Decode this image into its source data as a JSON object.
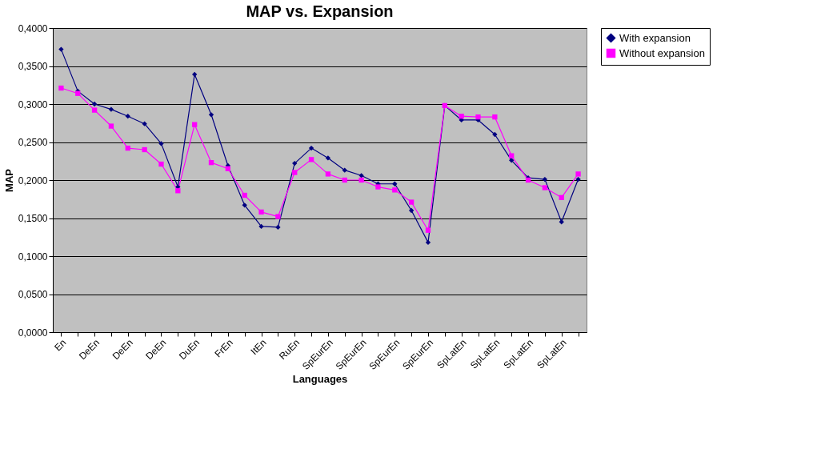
{
  "chart_data": {
    "type": "line",
    "title": "MAP vs. Expansion",
    "xlabel": "Languages",
    "ylabel": "MAP",
    "categories": [
      "En",
      null,
      "DeEn",
      null,
      "DeEn",
      null,
      "DeEn",
      null,
      "DuEn",
      null,
      "FrEn",
      null,
      "ItEn",
      null,
      "RuEn",
      null,
      "SpEurEn",
      null,
      "SpEurEn",
      null,
      "SpEurEn",
      null,
      "SpEurEn",
      null,
      "SpLatEn",
      null,
      "SpLatEn",
      null,
      "SpLatEn",
      null,
      "SpLatEn",
      null
    ],
    "series": [
      {
        "name": "With expansion",
        "color": "#000080",
        "marker": "diamond",
        "values": [
          0.372,
          0.317,
          0.3,
          0.293,
          0.284,
          0.274,
          0.248,
          0.191,
          0.339,
          0.286,
          0.219,
          0.167,
          0.139,
          0.138,
          0.222,
          0.242,
          0.229,
          0.213,
          0.206,
          0.195,
          0.195,
          0.16,
          0.118,
          0.298,
          0.279,
          0.279,
          0.26,
          0.226,
          0.203,
          0.201,
          0.145,
          0.201
        ]
      },
      {
        "name": "Without expansion",
        "color": "#ff00ff",
        "marker": "square",
        "values": [
          0.321,
          0.314,
          0.292,
          0.271,
          0.242,
          0.24,
          0.221,
          0.186,
          0.273,
          0.223,
          0.215,
          0.18,
          0.158,
          0.152,
          0.21,
          0.227,
          0.208,
          0.2,
          0.2,
          0.191,
          0.187,
          0.171,
          0.134,
          0.298,
          0.284,
          0.283,
          0.283,
          0.232,
          0.2,
          0.19,
          0.177,
          0.208
        ]
      }
    ],
    "ylim": [
      0,
      0.4
    ],
    "yticks": [
      {
        "value": 0,
        "label": "0,0000"
      },
      {
        "value": 0.05,
        "label": "0,0500"
      },
      {
        "value": 0.1,
        "label": "0,1000"
      },
      {
        "value": 0.15,
        "label": "0,1500"
      },
      {
        "value": 0.2,
        "label": "0,2000"
      },
      {
        "value": 0.25,
        "label": "0,2500"
      },
      {
        "value": 0.3,
        "label": "0,3000"
      },
      {
        "value": 0.35,
        "label": "0,3500"
      },
      {
        "value": 0.4,
        "label": "0,4000"
      }
    ],
    "grid": "y",
    "legend": "right",
    "line_style": "solid"
  }
}
